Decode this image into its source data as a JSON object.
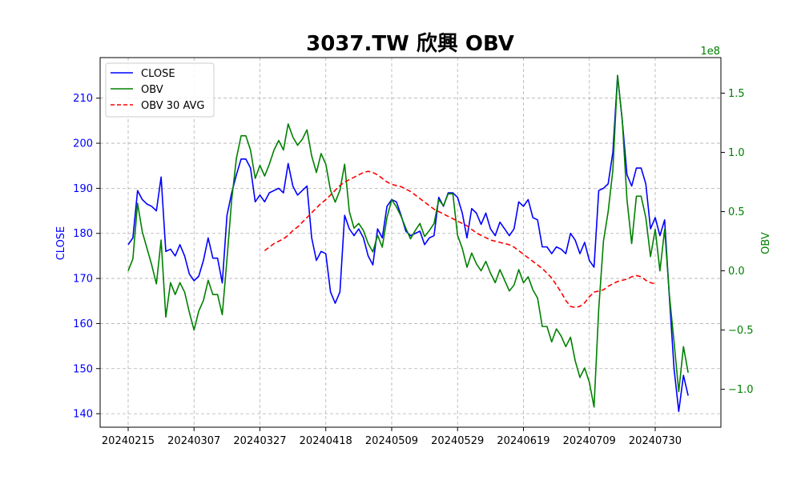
{
  "chart_data": {
    "type": "line",
    "title": "3037.TW 欣興 OBV",
    "left_axis_label": "CLOSE",
    "right_axis_label": "OBV",
    "right_axis_exponent": "1e8",
    "left_ylim": [
      137,
      219
    ],
    "right_ylim": [
      -1.32,
      1.8
    ],
    "left_ticks": [
      140,
      150,
      160,
      170,
      180,
      190,
      200,
      210
    ],
    "right_ticks": [
      -1.0,
      -0.5,
      0.0,
      0.5,
      1.0,
      1.5
    ],
    "right_tick_labels": [
      "−1.0",
      "−0.5",
      "0.0",
      "0.5",
      "1.0",
      "1.5"
    ],
    "x_tick_labels": [
      "20240215",
      "20240307",
      "20240327",
      "20240418",
      "20240509",
      "20240529",
      "20240619",
      "20240709",
      "20240730"
    ],
    "x_tick_indices": [
      0,
      14,
      28,
      42,
      56,
      70,
      84,
      98,
      112
    ],
    "x_count": 121,
    "grid": true,
    "legend_position": "top-left",
    "colors": {
      "close": "#0000ff",
      "obv": "#008000",
      "avg": "#ff0000",
      "grid": "#b0b0b0"
    },
    "series": [
      {
        "name": "CLOSE",
        "axis": "left",
        "values": [
          177.5,
          179,
          189.5,
          187.5,
          186.5,
          186,
          185,
          192.5,
          176,
          176.5,
          175,
          177.5,
          175,
          171,
          169.5,
          170.5,
          174,
          179,
          174.5,
          174.5,
          169,
          184,
          189,
          193,
          196.5,
          196.5,
          194.5,
          187,
          188.5,
          187,
          189,
          189.5,
          190,
          189,
          195.5,
          190.5,
          188.5,
          189.5,
          190.5,
          179,
          174,
          176,
          175.5,
          167,
          164.5,
          167,
          184,
          181,
          179.5,
          181,
          179,
          175,
          173,
          181,
          179,
          186,
          187.5,
          187,
          184,
          180.5,
          179.5,
          180,
          180.5,
          177.5,
          179,
          179.5,
          188,
          186,
          189,
          189,
          188,
          184.5,
          179,
          185.5,
          184.5,
          182,
          184.5,
          181,
          179.5,
          182.5,
          181,
          179.5,
          181,
          187,
          186,
          187.5,
          183.5,
          183,
          177,
          177,
          175.5,
          177,
          176.5,
          175.5,
          180,
          178.5,
          175.5,
          178,
          174,
          172.5,
          189.5,
          190,
          191,
          198,
          215,
          205,
          193,
          190.5,
          194.5,
          194.5,
          191,
          181,
          183.5,
          179.5,
          183,
          166,
          150,
          140.5,
          148.5,
          144
        ]
      },
      {
        "name": "OBV",
        "axis": "right",
        "values": [
          0.0,
          0.1,
          0.57,
          0.33,
          0.19,
          0.05,
          -0.11,
          0.26,
          -0.39,
          -0.1,
          -0.2,
          -0.1,
          -0.18,
          -0.35,
          -0.5,
          -0.34,
          -0.25,
          -0.08,
          -0.2,
          -0.2,
          -0.37,
          0.1,
          0.6,
          0.95,
          1.14,
          1.14,
          1.02,
          0.78,
          0.89,
          0.8,
          0.9,
          1.02,
          1.1,
          1.02,
          1.24,
          1.13,
          1.06,
          1.11,
          1.19,
          0.97,
          0.83,
          0.99,
          0.9,
          0.68,
          0.58,
          0.68,
          0.9,
          0.5,
          0.36,
          0.4,
          0.34,
          0.23,
          0.16,
          0.3,
          0.2,
          0.45,
          0.6,
          0.54,
          0.46,
          0.36,
          0.27,
          0.34,
          0.4,
          0.29,
          0.34,
          0.4,
          0.6,
          0.55,
          0.65,
          0.65,
          0.3,
          0.19,
          0.03,
          0.15,
          0.06,
          0.0,
          0.08,
          -0.02,
          -0.1,
          0.01,
          -0.08,
          -0.17,
          -0.12,
          0.01,
          -0.1,
          -0.05,
          -0.16,
          -0.23,
          -0.47,
          -0.47,
          -0.6,
          -0.49,
          -0.55,
          -0.64,
          -0.56,
          -0.76,
          -0.9,
          -0.82,
          -0.94,
          -1.15,
          -0.32,
          0.25,
          0.5,
          0.85,
          1.65,
          1.27,
          0.6,
          0.23,
          0.63,
          0.63,
          0.45,
          0.12,
          0.35,
          0.0,
          0.35,
          -0.2,
          -0.6,
          -1.02,
          -0.64,
          -0.86
        ]
      },
      {
        "name": "OBV 30 AVG",
        "axis": "right",
        "start_index": 29,
        "values": [
          0.17,
          0.2,
          0.23,
          0.25,
          0.27,
          0.3,
          0.34,
          0.37,
          0.41,
          0.45,
          0.49,
          0.53,
          0.57,
          0.6,
          0.64,
          0.68,
          0.72,
          0.75,
          0.77,
          0.79,
          0.81,
          0.83,
          0.84,
          0.83,
          0.81,
          0.78,
          0.75,
          0.73,
          0.72,
          0.71,
          0.69,
          0.67,
          0.64,
          0.61,
          0.58,
          0.55,
          0.52,
          0.5,
          0.48,
          0.46,
          0.44,
          0.42,
          0.4,
          0.38,
          0.35,
          0.32,
          0.3,
          0.28,
          0.26,
          0.25,
          0.24,
          0.23,
          0.22,
          0.2,
          0.17,
          0.14,
          0.11,
          0.08,
          0.05,
          0.02,
          -0.02,
          -0.06,
          -0.12,
          -0.18,
          -0.25,
          -0.3,
          -0.31,
          -0.3,
          -0.27,
          -0.22,
          -0.18,
          -0.17,
          -0.16,
          -0.13,
          -0.11,
          -0.09,
          -0.08,
          -0.07,
          -0.05,
          -0.04,
          -0.05,
          -0.08,
          -0.1,
          -0.11
        ]
      }
    ]
  }
}
